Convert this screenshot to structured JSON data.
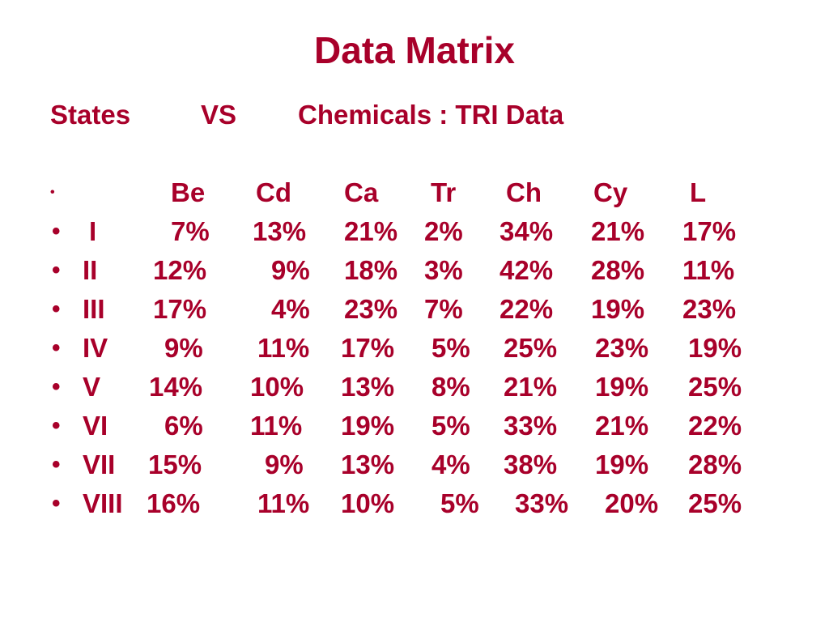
{
  "title": "Data Matrix",
  "subtitle": {
    "left": "States",
    "middle": "VS",
    "right": "Chemicals : TRI Data"
  },
  "header_bullet": "•",
  "columns": [
    "Be",
    "Cd",
    "Ca",
    "Tr",
    "Ch",
    "Cy",
    "L"
  ],
  "rows": [
    {
      "label": "I",
      "values": [
        "7%",
        "13%",
        "21%",
        "2%",
        "34%",
        "21%",
        "17%"
      ]
    },
    {
      "label": "II",
      "values": [
        "12%",
        "9%",
        "18%",
        "3%",
        "42%",
        "28%",
        "11%"
      ]
    },
    {
      "label": "III",
      "values": [
        "17%",
        "4%",
        "23%",
        "7%",
        "22%",
        "19%",
        "23%"
      ]
    },
    {
      "label": "IV",
      "values": [
        "9%",
        "11%",
        "17%",
        "5%",
        "25%",
        "23%",
        "19%"
      ]
    },
    {
      "label": "V",
      "values": [
        "14%",
        "10%",
        "13%",
        "8%",
        "21%",
        "19%",
        "25%"
      ]
    },
    {
      "label": "VI",
      "values": [
        "6%",
        "11%",
        "19%",
        "5%",
        "33%",
        "21%",
        "22%"
      ]
    },
    {
      "label": "VII",
      "values": [
        "15%",
        "9%",
        "13%",
        "4%",
        "38%",
        "19%",
        "28%"
      ]
    },
    {
      "label": "VIII",
      "values": [
        "16%",
        "11%",
        "10%",
        "5%",
        "33%",
        "20%",
        "25%"
      ]
    }
  ],
  "row_bullet": "•",
  "colors": {
    "text": "#a8002a",
    "background": "#ffffff"
  }
}
